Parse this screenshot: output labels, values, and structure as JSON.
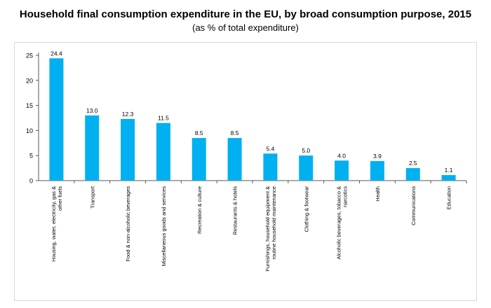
{
  "header": {
    "title": "Household final consumption expenditure in the EU, by broad consumption purpose, 2015",
    "subtitle": "(as % of total expenditure)"
  },
  "colors": {
    "bar": "#00B0F0",
    "axis": "#595959",
    "gridline": "#d9d9d9"
  },
  "chart_data": {
    "type": "bar",
    "title": "Household final consumption expenditure in the EU, by broad consumption purpose, 2015",
    "subtitle": "(as % of total expenditure)",
    "categories": [
      "Housing, water, electricity, gas & other fuels",
      "Transport",
      "Food & non-alcoholic beverages",
      "Miscellaneous goods and services",
      "Recreation & culture",
      "Restaurants & hotels",
      "Furnishings, household equipment & routine household maintenance",
      "Clothing & footwear",
      "Alcoholic beverages, tobacco & narcotics",
      "Health",
      "Communications",
      "Education"
    ],
    "category_label_lines": [
      [
        "Housing, water, electricity, gas &",
        "other fuels"
      ],
      [
        "Transport"
      ],
      [
        "Food & non-alcoholic beverages"
      ],
      [
        "Miscellaneous goods and services"
      ],
      [
        "Recreation & culture"
      ],
      [
        "Restaurants & hotels"
      ],
      [
        "Furnishings, household equipment &",
        "routine household maintenance"
      ],
      [
        "Clothing & footwear"
      ],
      [
        "Alcoholic beverages, tobacco &",
        "narcotics"
      ],
      [
        "Health"
      ],
      [
        "Communications"
      ],
      [
        "Education"
      ]
    ],
    "values": [
      24.4,
      13.0,
      12.3,
      11.5,
      8.5,
      8.5,
      5.4,
      5.0,
      4.0,
      3.9,
      2.5,
      1.1
    ],
    "value_labels": [
      "24.4",
      "13.0",
      "12.3",
      "11.5",
      "8.5",
      "8.5",
      "5.4",
      "5.0",
      "4.0",
      "3.9",
      "2.5",
      "1.1"
    ],
    "ylim": [
      0,
      25
    ],
    "yticks": [
      0,
      5,
      10,
      15,
      20,
      25
    ],
    "xlabel": "",
    "ylabel": "",
    "grid": false,
    "legend": "none"
  }
}
